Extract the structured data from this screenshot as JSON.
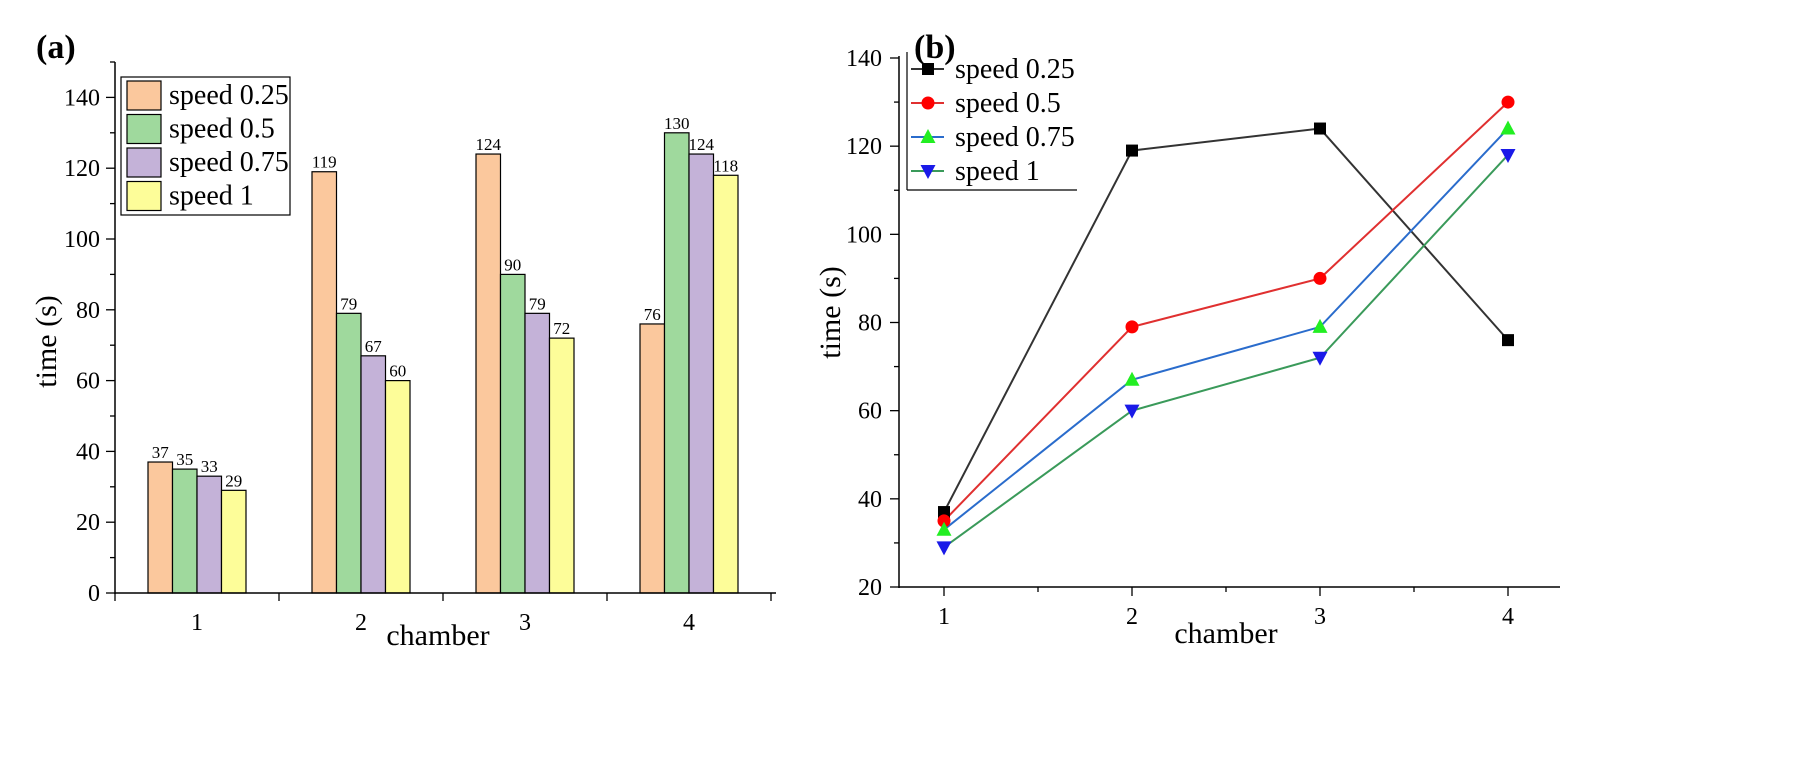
{
  "panels": {
    "a": {
      "label": "(a)"
    },
    "b": {
      "label": "(b)"
    }
  },
  "chart_data": [
    {
      "type": "bar",
      "panel": "(a)",
      "categories": [
        "1",
        "2",
        "3",
        "4"
      ],
      "series": [
        {
          "name": "speed 0.25",
          "values": [
            37,
            119,
            124,
            76
          ],
          "color": "#fbc89d"
        },
        {
          "name": "speed 0.5",
          "values": [
            35,
            79,
            90,
            130
          ],
          "color": "#9fd99d"
        },
        {
          "name": "speed 0.75",
          "values": [
            33,
            67,
            79,
            124
          ],
          "color": "#c4b2d8"
        },
        {
          "name": "speed 1",
          "values": [
            29,
            60,
            72,
            118
          ],
          "color": "#fdfd99"
        }
      ],
      "data_labels": [
        [
          "37",
          "119",
          "124",
          "76"
        ],
        [
          "35",
          "79",
          "90",
          "130"
        ],
        [
          "33",
          "67",
          "79",
          "124"
        ],
        [
          "29",
          "60",
          "72",
          "118"
        ]
      ],
      "xlabel": "chamber",
      "ylabel": "time (s)",
      "ylim": [
        0,
        150
      ],
      "yticks": [
        "0",
        "20",
        "40",
        "60",
        "80",
        "100",
        "120",
        "140"
      ],
      "legend_position": "top-left"
    },
    {
      "type": "line",
      "panel": "(b)",
      "x": [
        1,
        2,
        3,
        4
      ],
      "xticks": [
        "1",
        "2",
        "3",
        "4"
      ],
      "series": [
        {
          "name": "speed 0.25",
          "values": [
            37,
            119,
            124,
            76
          ],
          "color": "#333333",
          "marker_color": "#000000",
          "marker": "square"
        },
        {
          "name": "speed 0.5",
          "values": [
            35,
            79,
            90,
            130
          ],
          "color": "#e03030",
          "marker_color": "#ff0000",
          "marker": "circle"
        },
        {
          "name": "speed 0.75",
          "values": [
            33,
            67,
            79,
            124
          ],
          "color": "#2a6ccc",
          "marker_color": "#22ee22",
          "marker": "triangle-up"
        },
        {
          "name": "speed 1",
          "values": [
            29,
            60,
            72,
            118
          ],
          "color": "#3a9a5a",
          "marker_color": "#1a1ae8",
          "marker": "triangle-down"
        }
      ],
      "xlabel": "chamber",
      "ylabel": "time (s)",
      "ylim": [
        20,
        140
      ],
      "yticks": [
        "20",
        "40",
        "60",
        "80",
        "100",
        "120",
        "140"
      ],
      "legend_position": "top-left"
    }
  ]
}
